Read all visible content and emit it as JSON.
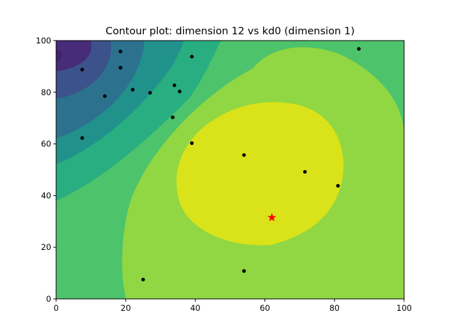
{
  "chart_data": {
    "type": "contour",
    "title": "Contour plot: dimension 12 vs kd0 (dimension 1)",
    "xlabel": "",
    "ylabel": "",
    "xlim": [
      0,
      100
    ],
    "ylim": [
      0,
      100
    ],
    "x_ticks": [
      0,
      20,
      40,
      60,
      80,
      100
    ],
    "y_ticks": [
      0,
      20,
      40,
      60,
      80,
      100
    ],
    "grid": false,
    "colors": {
      "level_0": "#472c7a",
      "level_1": "#3b528b",
      "level_2": "#2c728e",
      "level_3": "#21918c",
      "level_4": "#28ae80",
      "level_5": "#4dc36b",
      "level_6": "#90d743",
      "level_7": "#dae319",
      "points": "#000000",
      "best": "#ff0000"
    },
    "sample_points": [
      {
        "x": 7.5,
        "y": 62.3
      },
      {
        "x": 7.5,
        "y": 88.8
      },
      {
        "x": 14,
        "y": 78.5
      },
      {
        "x": 18.5,
        "y": 95.8
      },
      {
        "x": 18.5,
        "y": 89.5
      },
      {
        "x": 22,
        "y": 81
      },
      {
        "x": 25,
        "y": 7.5
      },
      {
        "x": 27,
        "y": 79.8
      },
      {
        "x": 33.5,
        "y": 70.3
      },
      {
        "x": 34,
        "y": 82.7
      },
      {
        "x": 35.5,
        "y": 80.3
      },
      {
        "x": 39,
        "y": 93.8
      },
      {
        "x": 39,
        "y": 60.3
      },
      {
        "x": 54,
        "y": 55.7
      },
      {
        "x": 54,
        "y": 10.8
      },
      {
        "x": 71.5,
        "y": 49.2
      },
      {
        "x": 81,
        "y": 43.8
      },
      {
        "x": 87,
        "y": 96.8
      }
    ],
    "best_point": {
      "x": 62,
      "y": 31.5
    }
  }
}
